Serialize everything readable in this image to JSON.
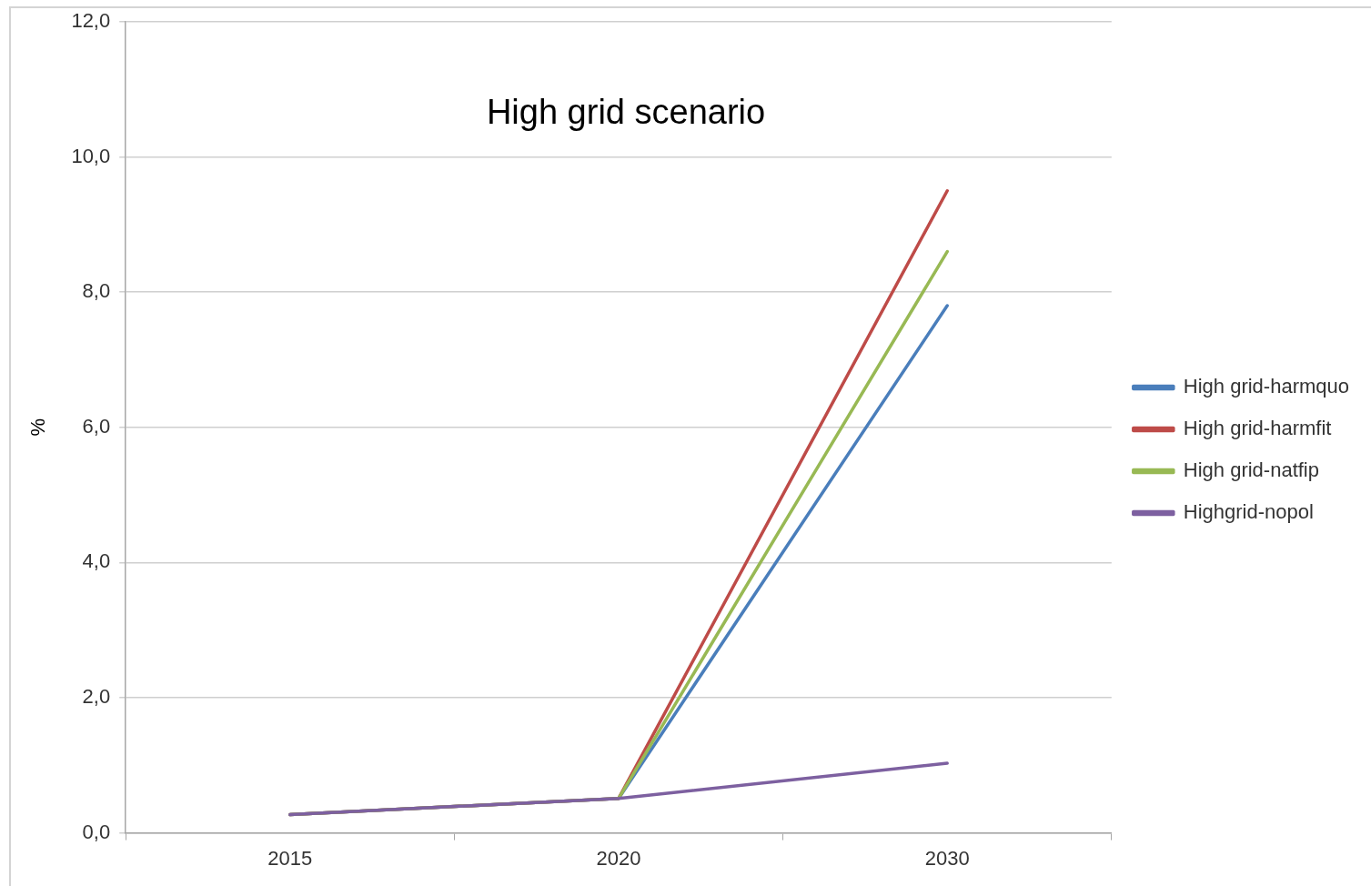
{
  "chart_data": {
    "type": "line",
    "title": "High grid scenario",
    "ylabel": "%",
    "categories": [
      "2015",
      "2020",
      "2030"
    ],
    "series": [
      {
        "name": "High grid-harmquo",
        "color": "#4a7ebb",
        "values": [
          0.27,
          0.51,
          7.8
        ]
      },
      {
        "name": "High grid-harmfit",
        "color": "#be4b48",
        "values": [
          0.27,
          0.51,
          9.5
        ]
      },
      {
        "name": "High grid-natfip",
        "color": "#98b954",
        "values": [
          0.27,
          0.51,
          8.6
        ]
      },
      {
        "name": "Highgrid-nopol",
        "color": "#7d60a0",
        "values": [
          0.27,
          0.51,
          1.03
        ]
      }
    ],
    "ylim": [
      0,
      12
    ],
    "yticks": [
      {
        "value": 0,
        "label": "0,0"
      },
      {
        "value": 2,
        "label": "2,0"
      },
      {
        "value": 4,
        "label": "4,0"
      },
      {
        "value": 6,
        "label": "6,0"
      },
      {
        "value": 8,
        "label": "8,0"
      },
      {
        "value": 10,
        "label": "10,0"
      },
      {
        "value": 12,
        "label": "12,0"
      }
    ],
    "grid": "y",
    "legend": "right",
    "marker": "none"
  }
}
